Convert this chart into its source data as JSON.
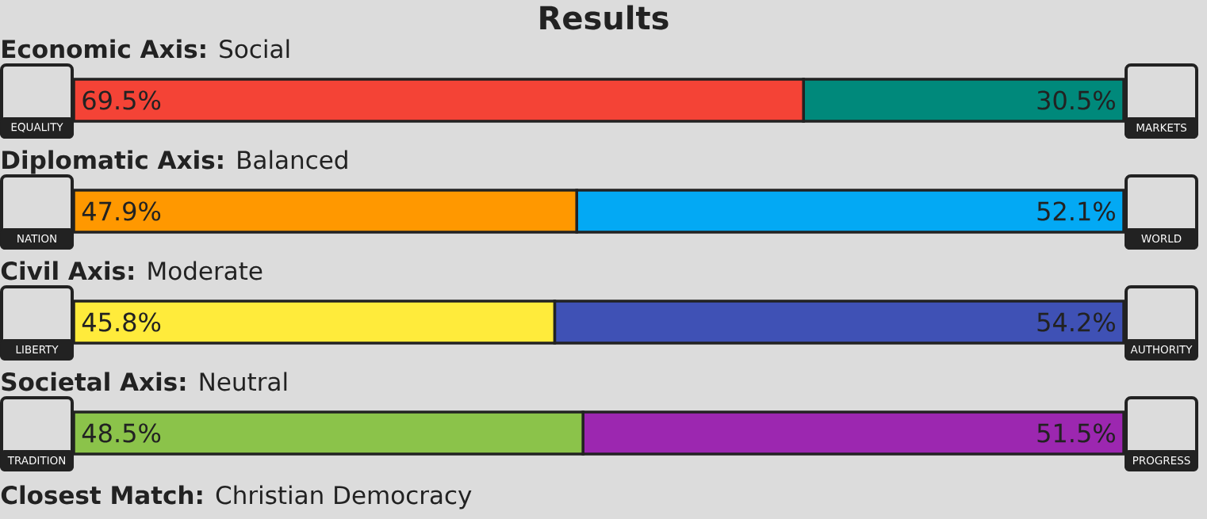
{
  "chart_data": [
    {
      "type": "bar",
      "orientation": "horizontal",
      "stacked": true,
      "title": "Results",
      "subtitle": "**Economic Axis:** Social",
      "categories": [
        null
      ],
      "series": [
        {
          "name": "EQUALITY",
          "color": "#f44336",
          "values": [
            69.5
          ],
          "value_labels": [
            "69.5%"
          ]
        },
        {
          "name": "MARKETS",
          "color": "#00897b",
          "values": [
            30.5
          ],
          "value_labels": [
            "30.5%"
          ]
        }
      ]
    },
    {
      "type": "bar",
      "orientation": "horizontal",
      "stacked": true,
      "subtitle": "**Diplomatic Axis:** Balanced",
      "categories": [
        null
      ],
      "series": [
        {
          "name": "NATION",
          "color": "#ff9800",
          "values": [
            47.9
          ],
          "value_labels": [
            "47.9%"
          ]
        },
        {
          "name": "WORLD",
          "color": "#03a9f4",
          "values": [
            52.1
          ],
          "value_labels": [
            "52.1%"
          ]
        }
      ]
    },
    {
      "type": "bar",
      "orientation": "horizontal",
      "stacked": true,
      "subtitle": "**Civil Axis:** Moderate",
      "categories": [
        null
      ],
      "series": [
        {
          "name": "LIBERTY",
          "color": "#ffeb3b",
          "values": [
            45.8
          ],
          "value_labels": [
            "45.8%"
          ]
        },
        {
          "name": "AUTHORITY",
          "color": "#3f51b5",
          "values": [
            54.2
          ],
          "value_labels": [
            "54.2%"
          ]
        }
      ]
    },
    {
      "type": "bar",
      "orientation": "horizontal",
      "stacked": true,
      "subtitle": "**Societal Axis:** Neutral",
      "categories": [
        null
      ],
      "annotations": [
        "**Closest Match:** Christian Democracy"
      ],
      "series": [
        {
          "name": "TRADITION",
          "color": "#8bc34a",
          "values": [
            48.5
          ],
          "value_labels": [
            "48.5%"
          ]
        },
        {
          "name": "PROGRESS",
          "color": "#9c27b0",
          "values": [
            51.5
          ],
          "value_labels": [
            "51.5%"
          ]
        }
      ]
    }
  ]
}
